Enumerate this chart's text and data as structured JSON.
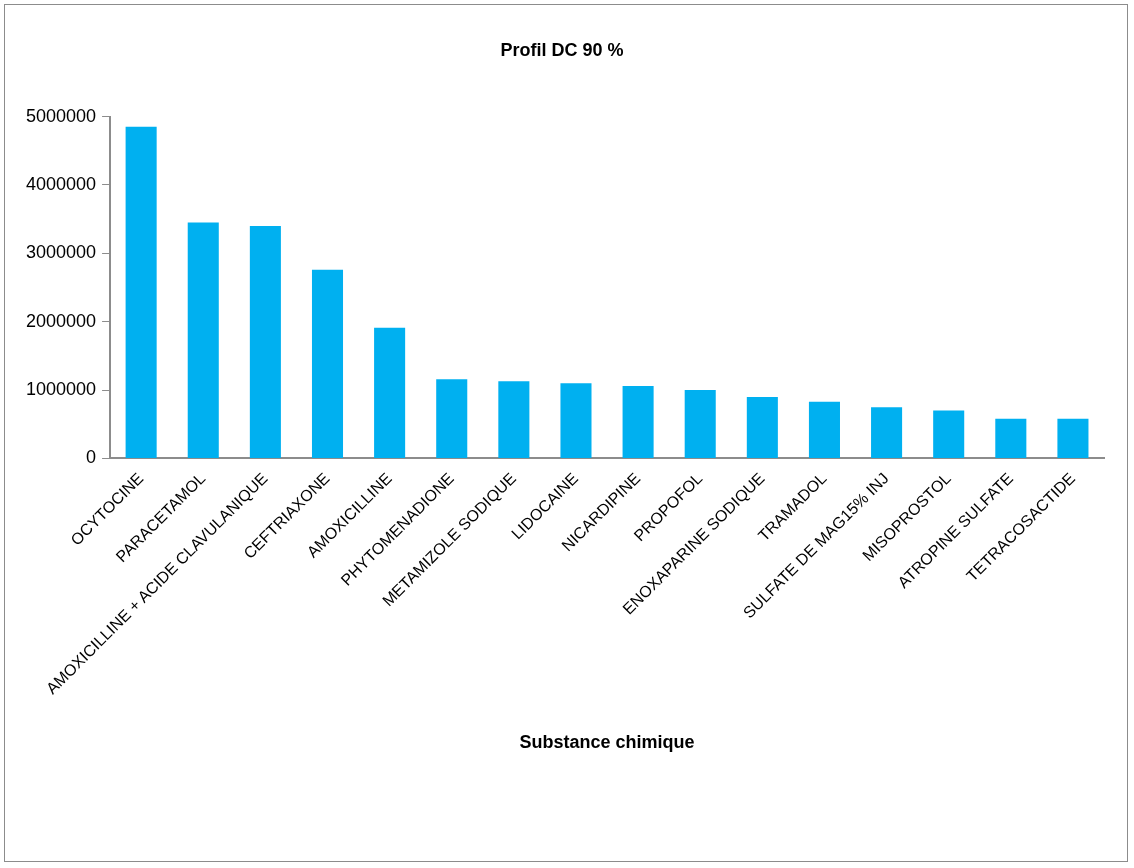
{
  "chart_data": {
    "type": "bar",
    "title": "Profil DC 90 %",
    "xlabel": "Substance chimique",
    "categories": [
      "OCYTOCINE",
      "PARACETAMOL",
      "AMOXICILLINE + ACIDE CLAVULANIQUE",
      "CEFTRIAXONE",
      "AMOXICILLINE",
      "PHYTOMENADIONE",
      "METAMIZOLE SODIQUE",
      "LIDOCAINE",
      "NICARDIPINE",
      "PROPOFOL",
      "ENOXAPARINE SODIQUE",
      "TRAMADOL",
      "SULFATE DE MAG15% INJ",
      "MISOPROSTOL",
      "ATROPINE SULFATE",
      "TETRACOSACTIDE"
    ],
    "values": [
      4850000,
      3450000,
      3400000,
      2760000,
      1910000,
      1160000,
      1130000,
      1100000,
      1060000,
      1000000,
      900000,
      830000,
      750000,
      700000,
      580000,
      580000
    ],
    "color": "#00b0f0",
    "ylim": [
      0,
      5000000
    ],
    "yticks": [
      0,
      1000000,
      2000000,
      3000000,
      4000000,
      5000000
    ],
    "grid": false,
    "legend": false
  }
}
